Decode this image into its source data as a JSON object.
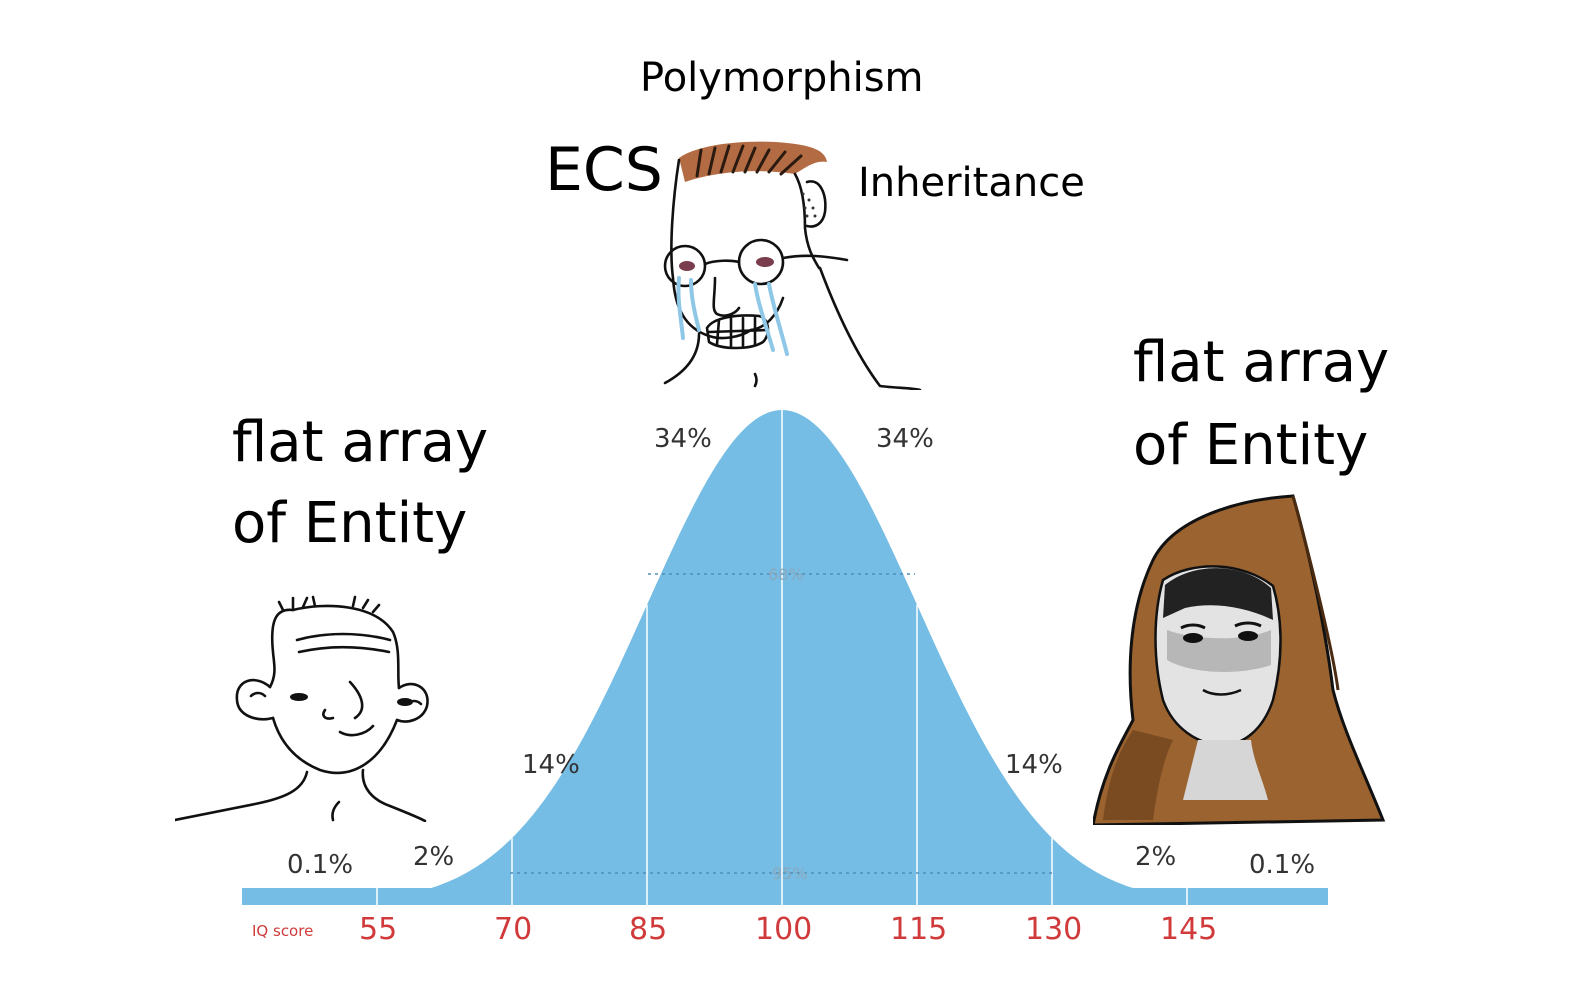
{
  "top_labels": {
    "polymorphism": "Polymorphism",
    "ecs": "ECS",
    "inheritance": "Inheritance"
  },
  "left_text": {
    "line1": "flat array",
    "line2": "of Entity"
  },
  "right_text": {
    "line1": "flat array",
    "line2": "of Entity"
  },
  "curve": {
    "color": "#75bde4",
    "percent_labels": {
      "left_far": "0.1%",
      "left_tail": "2%",
      "left_mid": "14%",
      "left_center": "34%",
      "right_center": "34%",
      "right_mid": "14%",
      "right_tail": "2%",
      "right_far": "0.1%"
    },
    "inner_labels": {
      "sd1": "68%",
      "sd2": "95%"
    }
  },
  "axis": {
    "caption": "IQ score",
    "ticks": [
      "55",
      "70",
      "85",
      "100",
      "115",
      "130",
      "145"
    ]
  },
  "characters": {
    "left": "wojak-simple-icon",
    "center": "crying-glasses-wojak-icon",
    "right": "hooded-monk-icon"
  }
}
